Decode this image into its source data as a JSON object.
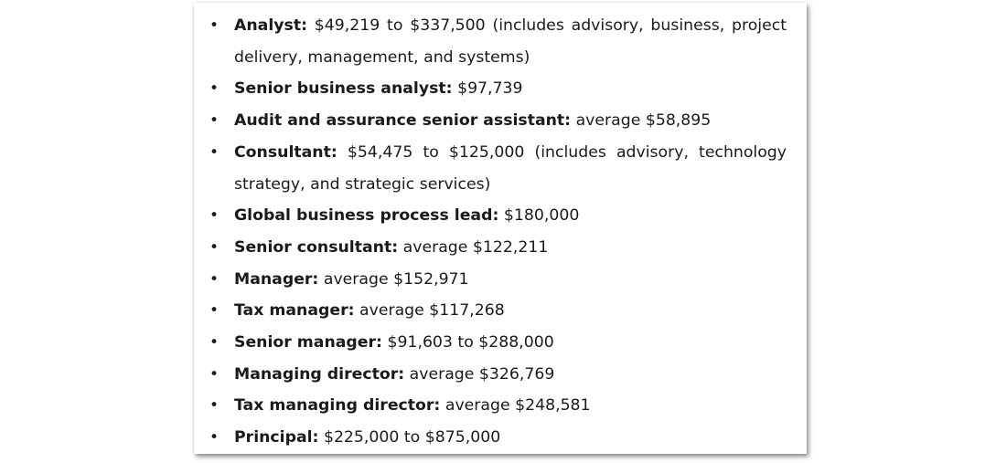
{
  "items": [
    {
      "role": "Analyst:",
      "detail": " $49,219 to $337,500 (includes advisory, business, project delivery, management, and systems)"
    },
    {
      "role": "Senior business analyst:",
      "detail": " $97,739"
    },
    {
      "role": "Audit and assurance senior assistant:",
      "detail": " average $58,895"
    },
    {
      "role": "Consultant:",
      "detail": " $54,475 to $125,000 (includes advisory, technology strategy, and strategic services)"
    },
    {
      "role": "Global business process lead:",
      "detail": " $180,000"
    },
    {
      "role": "Senior consultant:",
      "detail": " average $122,211"
    },
    {
      "role": "Manager:",
      "detail": " average $152,971"
    },
    {
      "role": "Tax manager:",
      "detail": " average $117,268"
    },
    {
      "role": "Senior manager:",
      "detail": " $91,603 to $288,000"
    },
    {
      "role": "Managing director:",
      "detail": " average $326,769"
    },
    {
      "role": "Tax managing director:",
      "detail": " average $248,581"
    },
    {
      "role": "Principal:",
      "detail": " $225,000 to $875,000"
    }
  ],
  "bullet_glyph": "•"
}
